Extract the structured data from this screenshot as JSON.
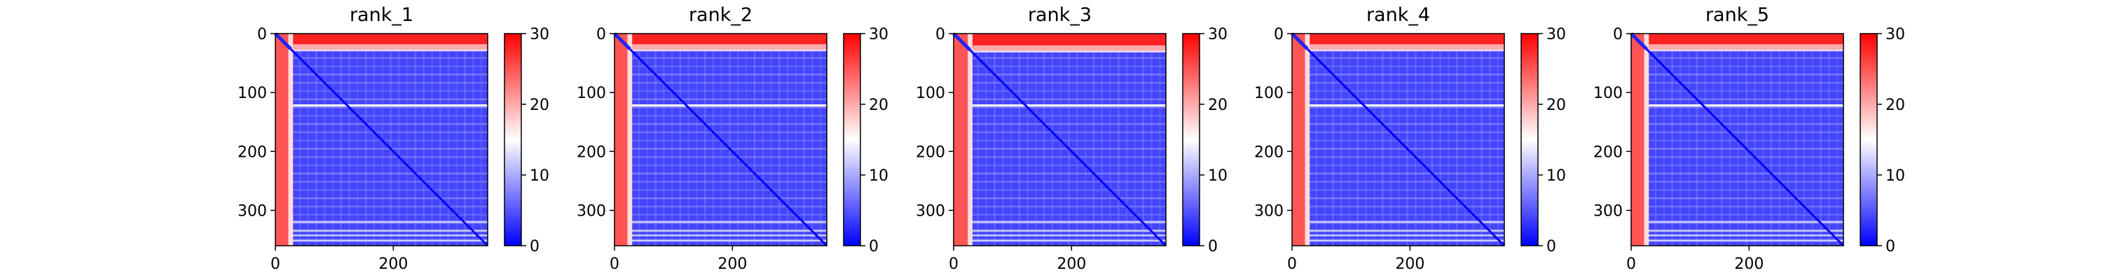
{
  "chart_data": {
    "type": "heatmap",
    "description_of_values": "Each panel is a ~360x360 matrix; values follow a blue-white-red scale from 0 to 30. Rows/cols near index 0-30 are high (red); diagonal is low (deep blue).",
    "matrix_size": 360,
    "xlim": [
      0,
      360
    ],
    "ylim": [
      360,
      0
    ],
    "xticks": [
      0,
      200
    ],
    "yticks": [
      0,
      100,
      200,
      300
    ],
    "colorbar": {
      "range": [
        0,
        30
      ],
      "ticks": [
        0,
        10,
        20,
        30
      ],
      "colors": [
        "#0000ff",
        "#ffffff",
        "#ff0000"
      ]
    },
    "panels": [
      {
        "title": "rank_1",
        "high_band_rows": 30,
        "white_line_row": 120
      },
      {
        "title": "rank_2",
        "high_band_rows": 30,
        "white_line_row": 120
      },
      {
        "title": "rank_3",
        "high_band_rows": 32,
        "white_line_row": 120
      },
      {
        "title": "rank_4",
        "high_band_rows": 30,
        "white_line_row": 120
      },
      {
        "title": "rank_5",
        "high_band_rows": 30,
        "white_line_row": 120
      }
    ]
  }
}
